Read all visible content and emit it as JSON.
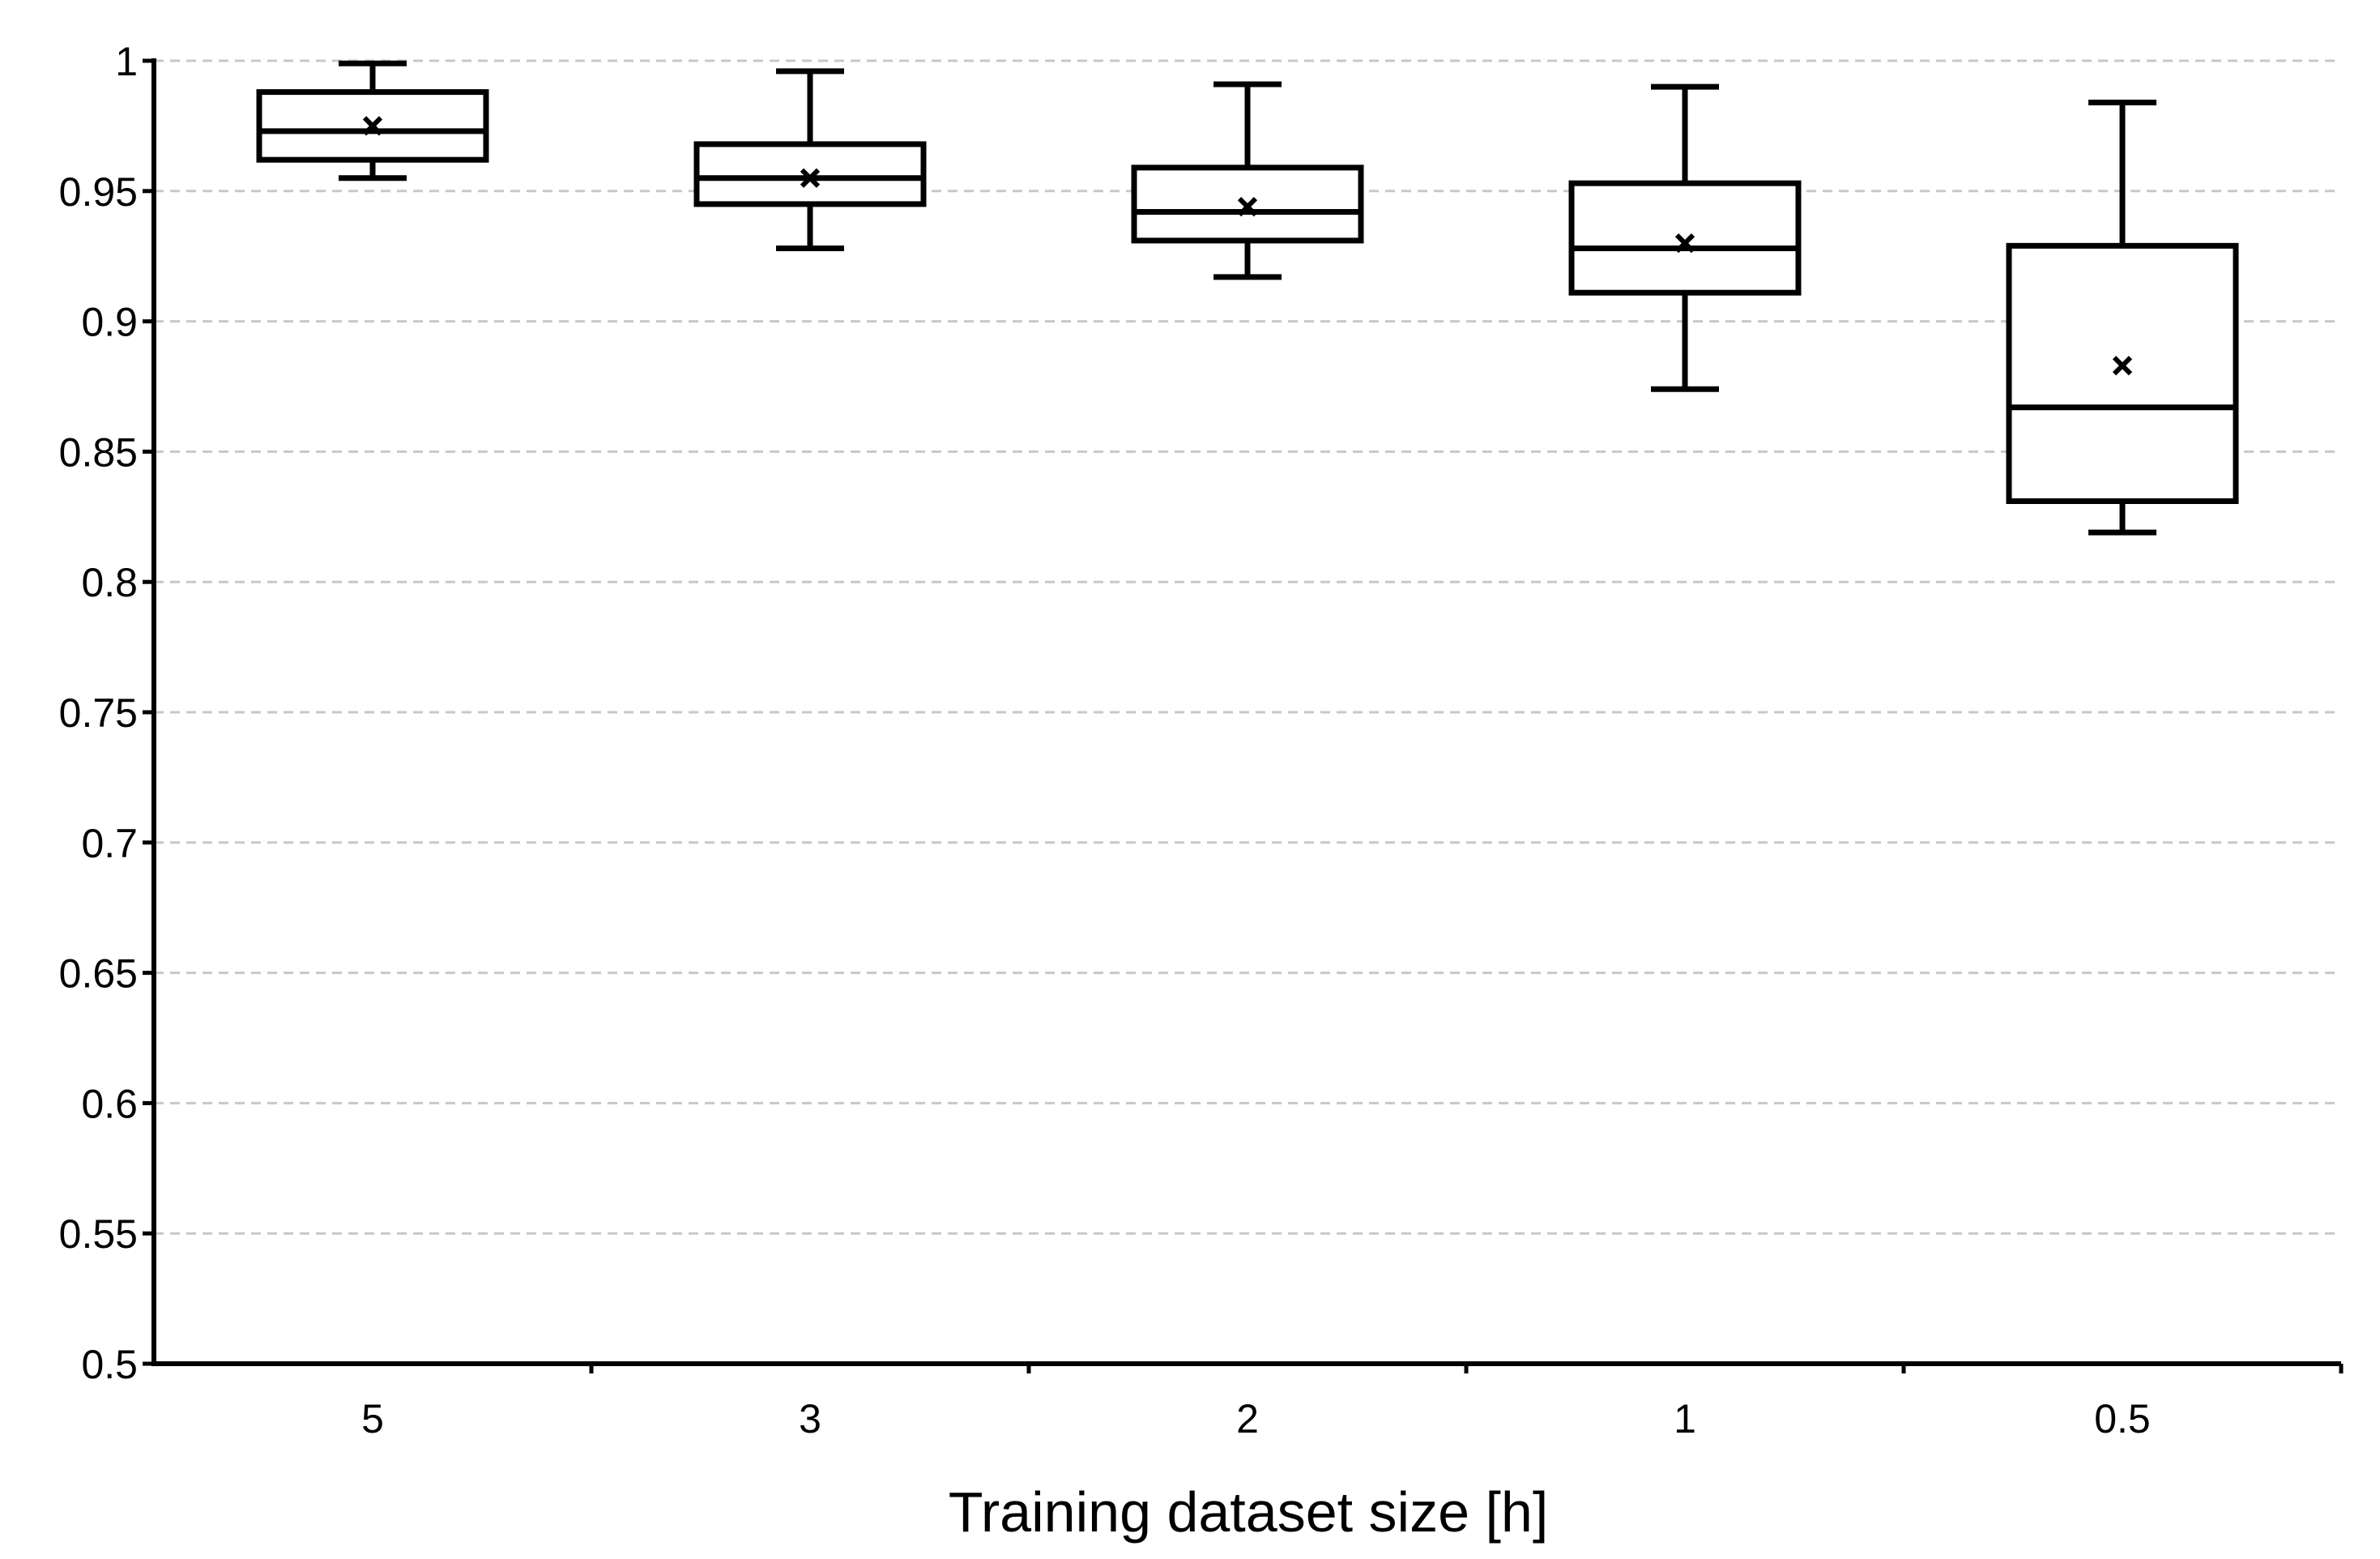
{
  "chart_data": {
    "type": "box",
    "title": "",
    "xlabel": "Training dataset size [h]",
    "ylabel": "",
    "ylim": [
      0.5,
      1
    ],
    "y_ticks": [
      0.5,
      0.55,
      0.6,
      0.65,
      0.7,
      0.75,
      0.8,
      0.85,
      0.9,
      0.95,
      1
    ],
    "y_tick_labels": [
      "0.5",
      "0.55",
      "0.6",
      "0.65",
      "0.7",
      "0.75",
      "0.8",
      "0.85",
      "0.9",
      "0.95",
      "1"
    ],
    "grid": "horizontal-dashed",
    "categories": [
      "5",
      "3",
      "2",
      "1",
      "0.5"
    ],
    "boxes": [
      {
        "category": "5",
        "min": 0.955,
        "q1": 0.962,
        "median": 0.973,
        "q3": 0.988,
        "max": 0.999,
        "mean": 0.975
      },
      {
        "category": "3",
        "min": 0.928,
        "q1": 0.945,
        "median": 0.955,
        "q3": 0.968,
        "max": 0.996,
        "mean": 0.955
      },
      {
        "category": "2",
        "min": 0.917,
        "q1": 0.931,
        "median": 0.942,
        "q3": 0.959,
        "max": 0.991,
        "mean": 0.944
      },
      {
        "category": "1",
        "min": 0.874,
        "q1": 0.911,
        "median": 0.928,
        "q3": 0.953,
        "max": 0.99,
        "mean": 0.93
      },
      {
        "category": "0.5",
        "min": 0.819,
        "q1": 0.831,
        "median": 0.867,
        "q3": 0.929,
        "max": 0.984,
        "mean": 0.883
      }
    ]
  }
}
